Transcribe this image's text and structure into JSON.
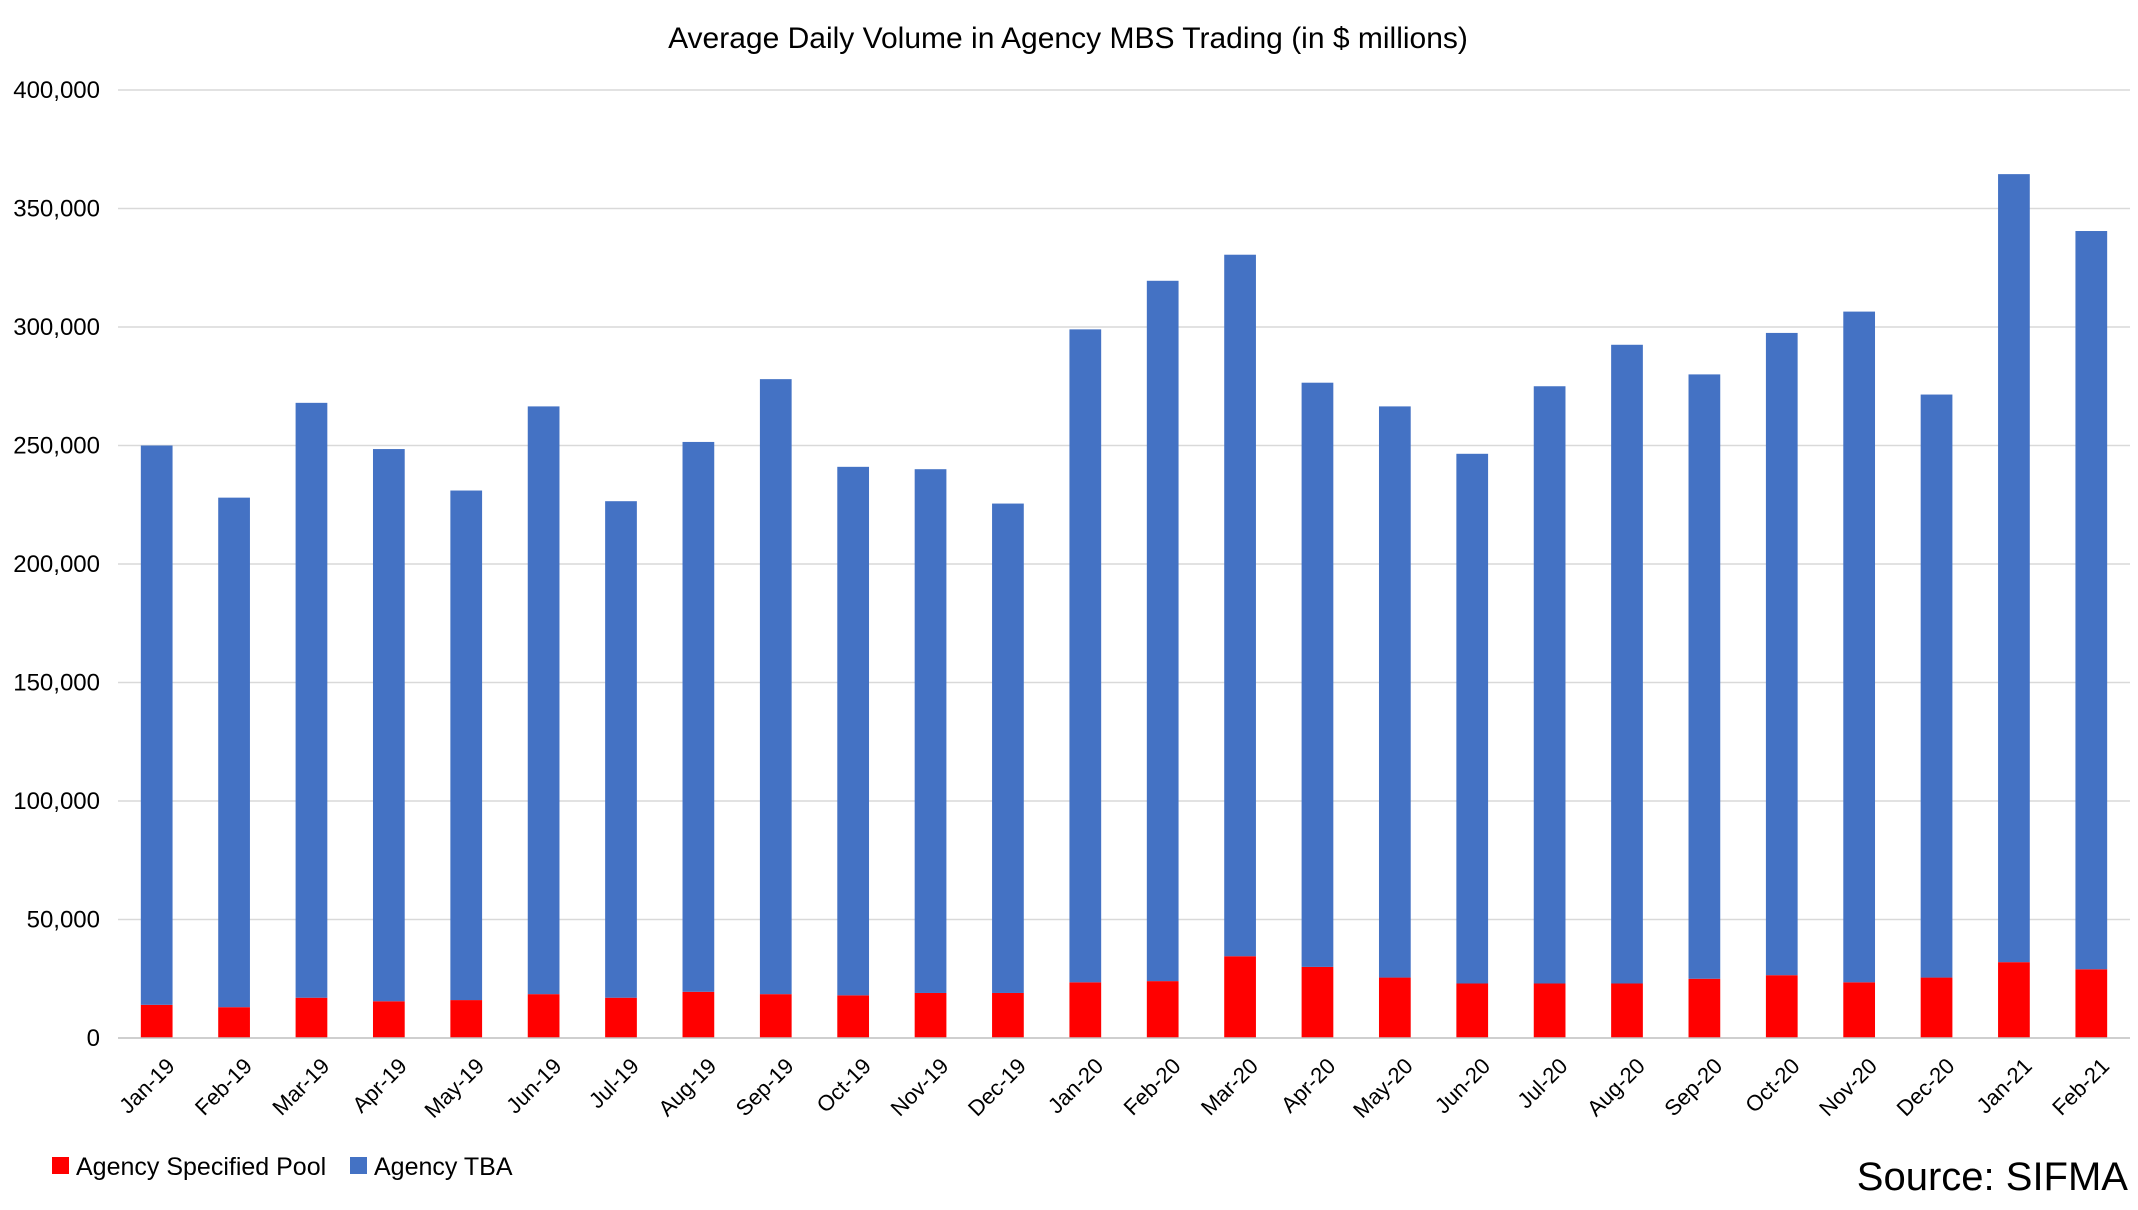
{
  "chart_data": {
    "type": "bar",
    "stacked": true,
    "title": "Average Daily Volume in Agency MBS Trading (in $ millions)",
    "xlabel": "",
    "ylabel": "",
    "ylim": [
      0,
      400000
    ],
    "yticks": [
      0,
      50000,
      100000,
      150000,
      200000,
      250000,
      300000,
      350000,
      400000
    ],
    "ytick_labels": [
      "0",
      "50,000",
      "100,000",
      "150,000",
      "200,000",
      "250,000",
      "300,000",
      "350,000",
      "400,000"
    ],
    "grid": true,
    "legend_position": "bottom-left",
    "categories": [
      "Jan-19",
      "Feb-19",
      "Mar-19",
      "Apr-19",
      "May-19",
      "Jun-19",
      "Jul-19",
      "Aug-19",
      "Sep-19",
      "Oct-19",
      "Nov-19",
      "Dec-19",
      "Jan-20",
      "Feb-20",
      "Mar-20",
      "Apr-20",
      "May-20",
      "Jun-20",
      "Jul-20",
      "Aug-20",
      "Sep-20",
      "Oct-20",
      "Nov-20",
      "Dec-20",
      "Jan-21",
      "Feb-21"
    ],
    "series": [
      {
        "name": "Agency Specified Pool",
        "color": "#ff0000",
        "values": [
          14000,
          13000,
          17000,
          15500,
          16000,
          18500,
          17000,
          19500,
          18500,
          18000,
          19000,
          19000,
          23500,
          24000,
          34500,
          30000,
          25500,
          23000,
          23000,
          23000,
          25000,
          26500,
          23500,
          25500,
          32000,
          29000
        ]
      },
      {
        "name": "Agency TBA",
        "color": "#4472c4",
        "values": [
          236000,
          215000,
          251000,
          233000,
          215000,
          248000,
          209500,
          232000,
          259500,
          223000,
          221000,
          206500,
          275500,
          295500,
          296000,
          246500,
          241000,
          223500,
          252000,
          269500,
          255000,
          271000,
          283000,
          246000,
          332500,
          311500
        ]
      }
    ],
    "source": "Source: SIFMA"
  }
}
